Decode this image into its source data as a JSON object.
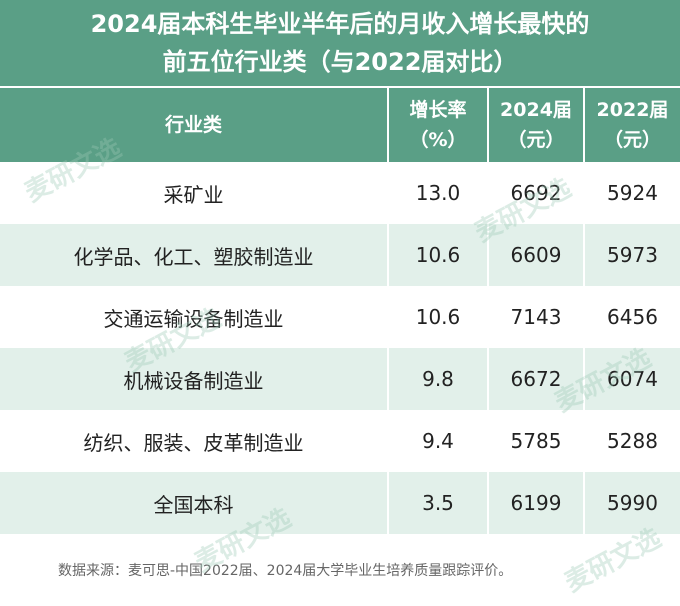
{
  "title": {
    "line1": "2024届本科生毕业半年后的月收入增长最快的",
    "line2": "前五位行业类（与2022届对比）"
  },
  "table": {
    "headers": [
      {
        "line1": "行业类",
        "line2": ""
      },
      {
        "line1": "增长率",
        "line2": "（%）"
      },
      {
        "line1": "2024届",
        "line2": "（元）"
      },
      {
        "line1": "2022届",
        "line2": "（元）"
      }
    ],
    "rows": [
      {
        "industry": "采矿业",
        "growth": "13.0",
        "y2024": "6692",
        "y2022": "5924"
      },
      {
        "industry": "化学品、化工、塑胶制造业",
        "growth": "10.6",
        "y2024": "6609",
        "y2022": "5973"
      },
      {
        "industry": "交通运输设备制造业",
        "growth": "10.6",
        "y2024": "7143",
        "y2022": "6456"
      },
      {
        "industry": "机械设备制造业",
        "growth": "9.8",
        "y2024": "6672",
        "y2022": "6074"
      },
      {
        "industry": "纺织、服装、皮革制造业",
        "growth": "9.4",
        "y2024": "5785",
        "y2022": "5288"
      },
      {
        "industry": "全国本科",
        "growth": "3.5",
        "y2024": "6199",
        "y2022": "5990"
      }
    ]
  },
  "source": "数据来源：麦可思-中国2022届、2024届大学毕业生培养质量跟踪评价。",
  "watermark": "麦研文选",
  "colors": {
    "header_bg": "#5a9f86",
    "stripe_bg": "#e2f0ea",
    "watermark": "#9cc9b6"
  }
}
